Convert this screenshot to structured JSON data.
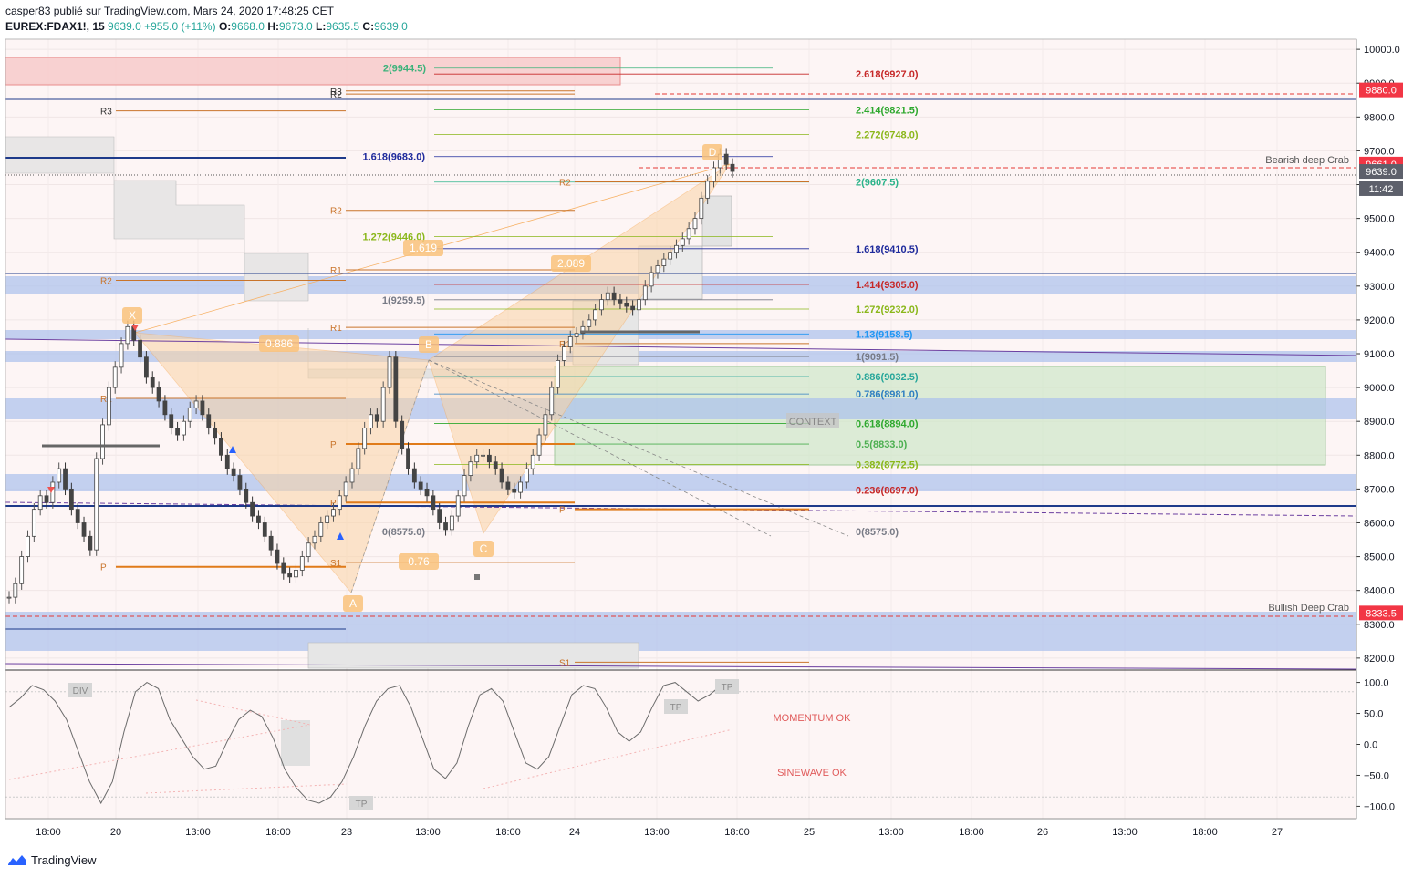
{
  "header": {
    "line1": "casper83 publié sur TradingView.com, Mars 24, 2020 17:48:25 CET",
    "symbol": "EUREX:FDAX1!, 15",
    "last": "9639.0",
    "change": "+955.0 (+11%)",
    "o_label": "O:",
    "o": "9668.0",
    "h_label": "H:",
    "h": "9673.0",
    "l_label": "L:",
    "l": "9635.5",
    "c_label": "C:",
    "c": "9639.0"
  },
  "footer": {
    "brand": "TradingView"
  },
  "colors": {
    "up": "#26a69a",
    "red": "#f23645",
    "blue": "#1e3a8a",
    "orange": "#e07b1a"
  },
  "chart_data": {
    "type": "line",
    "ylim": [
      8170,
      10030
    ],
    "price_ticks": [
      10000.0,
      9900.0,
      9800.0,
      9700.0,
      9600.0,
      9500.0,
      9400.0,
      9300.0,
      9200.0,
      9100.0,
      9000.0,
      8900.0,
      8800.0,
      8700.0,
      8600.0,
      8500.0,
      8400.0,
      8300.0,
      8200.0
    ],
    "price_tick_labels": [
      "10000.0",
      "9900.0",
      "9800.0",
      "9700.0",
      "9600.0",
      "9500.0",
      "9400.0",
      "9300.0",
      "9200.0",
      "9100.0",
      "9000.0",
      "8900.0",
      "8800.0",
      "8700.0",
      "8600.0",
      "8500.0",
      "8400.0",
      "8300.0",
      "8200.0"
    ],
    "time_labels": [
      "18:00",
      "20",
      "13:00",
      "18:00",
      "23",
      "13:00",
      "18:00",
      "24",
      "13:00",
      "18:00",
      "25",
      "13:00",
      "18:00",
      "26",
      "13:00",
      "18:00",
      "27"
    ],
    "price_badges": [
      {
        "label": "9880.0",
        "value": 9880,
        "color": "#f23645"
      },
      {
        "label": "9661.0",
        "value": 9661,
        "color": "#f23645"
      },
      {
        "label": "9639.0",
        "value": 9639,
        "color": "#5d606b"
      },
      {
        "label": "11:42",
        "value": 9588,
        "color": "#5d606b"
      },
      {
        "label": "8333.5",
        "value": 8333.5,
        "color": "#f23645"
      }
    ],
    "fib_levels": [
      {
        "label": "2(9944.5)",
        "value": 9944.5,
        "color": "#3bb27a"
      },
      {
        "label": "2.618(9927.0)",
        "value": 9927,
        "color": "#c62828"
      },
      {
        "label": "2.414(9821.5)",
        "value": 9821.5,
        "color": "#2ea82e"
      },
      {
        "label": "2.272(9748.0)",
        "value": 9748,
        "color": "#8ab71a"
      },
      {
        "label": "1.618(9683.0)",
        "value": 9683,
        "color": "#1e2a9c"
      },
      {
        "label": "2(9607.5)",
        "value": 9607.5,
        "color": "#2bb38a"
      },
      {
        "label": "1.272(9446.0)",
        "value": 9446,
        "color": "#8ab71a"
      },
      {
        "label": "1.618(9410.5)",
        "value": 9410.5,
        "color": "#1e2a9c"
      },
      {
        "label": "1.414(9305.0)",
        "value": 9305,
        "color": "#c62828"
      },
      {
        "label": "1(9259.5)",
        "value": 9259.5,
        "color": "#787b86"
      },
      {
        "label": "1.272(9232.0)",
        "value": 9232,
        "color": "#8ab71a"
      },
      {
        "label": "1.13(9158.5)",
        "value": 9158.5,
        "color": "#2196f3"
      },
      {
        "label": "1(9091.5)",
        "value": 9091.5,
        "color": "#787b86"
      },
      {
        "label": "0.886(9032.5)",
        "value": 9032.5,
        "color": "#26a69a"
      },
      {
        "label": "0.786(8981.0)",
        "value": 8981,
        "color": "#2f7fc1"
      },
      {
        "label": "0.618(8894.0)",
        "value": 8894,
        "color": "#2ea82e"
      },
      {
        "label": "0.5(8833.0)",
        "value": 8833,
        "color": "#4caf50"
      },
      {
        "label": "0.382(8772.5)",
        "value": 8772.5,
        "color": "#8ab71a"
      },
      {
        "label": "0.236(8697.0)",
        "value": 8697,
        "color": "#c62828"
      },
      {
        "label": "0(8575.0)",
        "value": 8575,
        "color": "#787b86"
      },
      {
        "label": "0(8575.0)",
        "value": 8575,
        "color": "#787b86"
      }
    ],
    "pivots": [
      {
        "label": "R3",
        "value": 9818
      },
      {
        "label": "R3",
        "value": 9877
      },
      {
        "label": "R2",
        "value": 9868
      },
      {
        "label": "R2",
        "value": 9608
      },
      {
        "label": "R2",
        "value": 9524
      },
      {
        "label": "R2",
        "value": 9317
      },
      {
        "label": "R1",
        "value": 9348
      },
      {
        "label": "R1",
        "value": 9178
      },
      {
        "label": "R1",
        "value": 8968
      },
      {
        "label": "R1",
        "value": 9130
      },
      {
        "label": "P",
        "value": 8833
      },
      {
        "label": "P",
        "value": 8660
      },
      {
        "label": "P",
        "value": 8640
      },
      {
        "label": "P",
        "value": 8470
      },
      {
        "label": "S1",
        "value": 8483
      },
      {
        "label": "S1",
        "value": 8188
      }
    ],
    "pattern_points": [
      {
        "label": "X",
        "value": 9180
      },
      {
        "label": "A",
        "value": 8430
      },
      {
        "label": "B",
        "value": 9090
      },
      {
        "label": "C",
        "value": 8580
      },
      {
        "label": "D",
        "value": 9690
      }
    ],
    "ratios": [
      "0.886",
      "1.619",
      "0.76",
      "2.089"
    ],
    "annotations": [
      "Bearish deep Crab",
      "Bullish Deep Crab",
      "CONTEXT"
    ],
    "oscillator": {
      "ylim": [
        -120,
        120
      ],
      "ticks": [
        100.0,
        50.0,
        0.0,
        -50.0,
        -100.0
      ],
      "tick_labels": [
        "100.0",
        "50.0",
        "0.0",
        "−50.0",
        "−100.0"
      ],
      "texts": [
        "MOMENTUM OK",
        "SINEWAVE OK"
      ],
      "markers": [
        "DIV",
        "TP",
        "TP",
        "TP"
      ],
      "values": [
        60,
        75,
        95,
        88,
        70,
        40,
        -10,
        -60,
        -95,
        -60,
        20,
        85,
        100,
        90,
        40,
        10,
        -20,
        -40,
        -35,
        5,
        40,
        55,
        45,
        10,
        -40,
        -70,
        -90,
        -95,
        -85,
        -60,
        -20,
        30,
        70,
        90,
        95,
        60,
        10,
        -40,
        -55,
        -30,
        30,
        80,
        90,
        70,
        20,
        -30,
        -40,
        -20,
        30,
        80,
        95,
        90,
        60,
        20,
        5,
        20,
        60,
        95,
        100,
        85,
        70,
        80,
        95,
        100
      ]
    }
  }
}
